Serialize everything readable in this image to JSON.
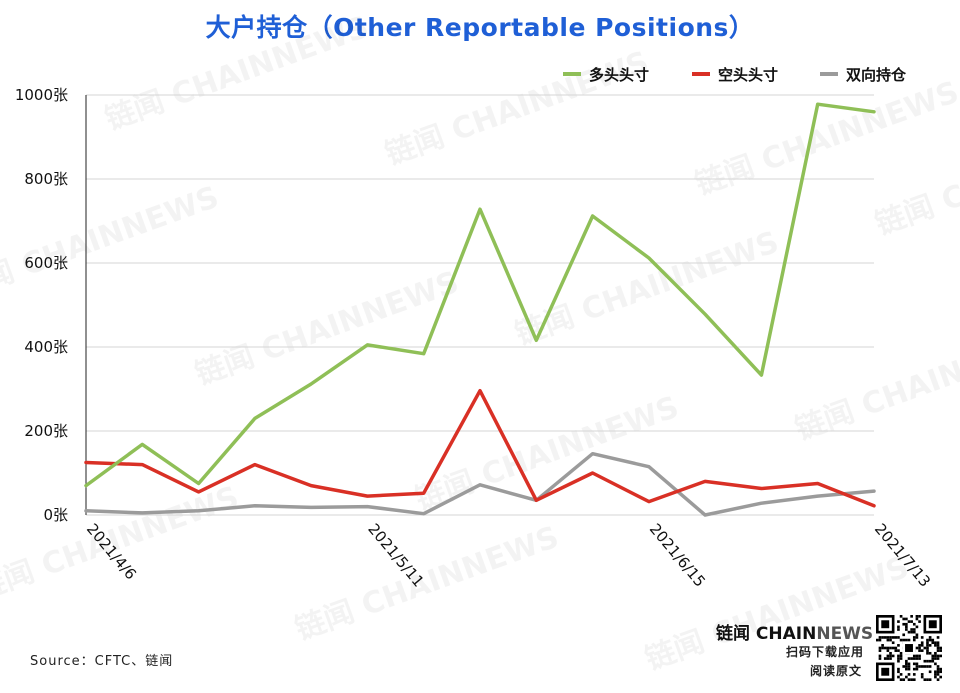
{
  "title": "大户持仓（Other Reportable Positions）",
  "source": "Source：CFTC、链闻",
  "brand": {
    "name": "链闻",
    "latin_a": "CHAIN",
    "latin_b": "NEWS",
    "line1": "扫码下载应用",
    "line2": "阅读原文"
  },
  "watermark": "链闻 CHAINNEWS",
  "chart_data": {
    "type": "line",
    "title": "大户持仓（Other Reportable Positions）",
    "x": [
      "2021/4/6",
      "2021/4/13",
      "2021/4/20",
      "2021/4/27",
      "2021/5/4",
      "2021/5/11",
      "2021/5/18",
      "2021/5/25",
      "2021/6/1",
      "2021/6/8",
      "2021/6/15",
      "2021/6/22",
      "2021/6/29",
      "2021/7/6",
      "2021/7/13"
    ],
    "x_tick_labels": [
      "2021/4/6",
      "2021/5/11",
      "2021/6/15",
      "2021/7/13"
    ],
    "y_tick_labels": [
      "0张",
      "200张",
      "400张",
      "600张",
      "800张",
      "1000张"
    ],
    "ylim": [
      0,
      1000
    ],
    "grid": true,
    "legend_position": "top-right",
    "series": [
      {
        "name": "多头头寸",
        "color": "#8fbf57",
        "values": [
          70,
          168,
          75,
          230,
          312,
          405,
          384,
          728,
          416,
          712,
          612,
          478,
          333,
          978,
          960
        ]
      },
      {
        "name": "空头头寸",
        "color": "#d93025",
        "values": [
          125,
          120,
          55,
          120,
          70,
          45,
          52,
          296,
          35,
          100,
          32,
          80,
          63,
          75,
          22
        ]
      },
      {
        "name": "双向持仓",
        "color": "#9b9b9b",
        "values": [
          10,
          5,
          10,
          22,
          18,
          20,
          3,
          72,
          35,
          146,
          115,
          0,
          28,
          45,
          57
        ]
      }
    ]
  }
}
